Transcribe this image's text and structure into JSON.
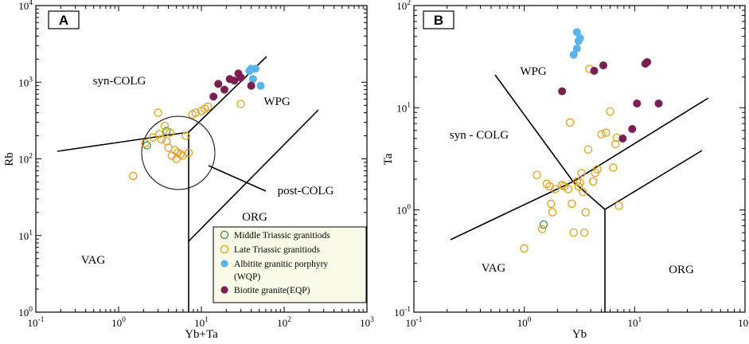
{
  "figure": {
    "colors": {
      "middle": "#3f8f5a",
      "late": "#e0a11a",
      "albitite": "#5ab4ea",
      "biotite": "#7d1e52",
      "legend_bg": "#fbf9e8"
    }
  },
  "chart_data": [
    {
      "panel": "A",
      "type": "scatter",
      "title": "",
      "xlabel": "Yb+Ta",
      "ylabel": "Rb",
      "xscale": "log",
      "yscale": "log",
      "xlim": [
        0.1,
        1000
      ],
      "ylim": [
        1,
        10000
      ],
      "x_tick_labels": [
        "10^-1",
        "10^0",
        "10^1",
        "10^2",
        "10^3"
      ],
      "y_tick_labels": [
        "10^0",
        "10^1",
        "10^2",
        "10^3",
        "10^4"
      ],
      "field_labels": [
        "syn-COLG",
        "WPG",
        "post-COLG",
        "ORG",
        "VAG"
      ],
      "legend": [
        {
          "key": "middle",
          "label": "Middle Triassic granitiods",
          "marker": "open-circle"
        },
        {
          "key": "late",
          "label": "Late Triassic granitiods",
          "marker": "open-circle"
        },
        {
          "key": "albitite",
          "label": "Albitite granitic porphyry",
          "label2": "(WQP)",
          "marker": "filled-circle"
        },
        {
          "key": "biotite",
          "label": "Biotite granite(EQP)",
          "marker": "filled-circle"
        }
      ],
      "series": [
        {
          "key": "middle",
          "points": [
            [
              2.2,
              150
            ],
            [
              3.8,
              230
            ]
          ]
        },
        {
          "key": "late",
          "points": [
            [
              1.5,
              60
            ],
            [
              2.1,
              160
            ],
            [
              2.6,
              190
            ],
            [
              3.0,
              400
            ],
            [
              3.1,
              210
            ],
            [
              3.3,
              180
            ],
            [
              3.6,
              270
            ],
            [
              3.8,
              170
            ],
            [
              4.0,
              140
            ],
            [
              4.2,
              220
            ],
            [
              4.4,
              110
            ],
            [
              4.8,
              130
            ],
            [
              5.0,
              100
            ],
            [
              5.2,
              120
            ],
            [
              5.6,
              115
            ],
            [
              5.9,
              110
            ],
            [
              6.5,
              200
            ],
            [
              7.0,
              120
            ],
            [
              7.8,
              380
            ],
            [
              8.5,
              400
            ],
            [
              10.0,
              420
            ],
            [
              11.0,
              450
            ],
            [
              12.0,
              480
            ],
            [
              30.0,
              520
            ]
          ]
        },
        {
          "key": "albitite",
          "points": [
            [
              38,
              1400
            ],
            [
              40,
              1500
            ],
            [
              45,
              1500
            ],
            [
              42,
              1100
            ],
            [
              52,
              900
            ]
          ]
        },
        {
          "key": "biotite",
          "points": [
            [
              14,
              650
            ],
            [
              16,
              950
            ],
            [
              19,
              800
            ],
            [
              22,
              1100
            ],
            [
              25,
              1050
            ],
            [
              28,
              1300
            ],
            [
              30,
              1150
            ],
            [
              40,
              900
            ]
          ]
        }
      ]
    },
    {
      "panel": "B",
      "type": "scatter",
      "title": "",
      "xlabel": "Yb",
      "ylabel": "Ta",
      "xscale": "log",
      "yscale": "log",
      "xlim": [
        0.1,
        100
      ],
      "ylim": [
        0.1,
        100
      ],
      "x_tick_labels": [
        "10^-1",
        "10^0",
        "10^1",
        "10^2"
      ],
      "y_tick_labels": [
        "10^-1",
        "10^0",
        "10^1",
        "10^2"
      ],
      "field_labels": [
        "WPG",
        "syn - COLG",
        "VAG",
        "ORG"
      ],
      "series": [
        {
          "key": "middle",
          "points": [
            [
              1.5,
              0.72
            ],
            [
              2.2,
              1.75
            ]
          ]
        },
        {
          "key": "late",
          "points": [
            [
              1.0,
              0.42
            ],
            [
              1.3,
              2.2
            ],
            [
              1.45,
              0.65
            ],
            [
              1.6,
              1.8
            ],
            [
              1.7,
              1.7
            ],
            [
              1.75,
              1.15
            ],
            [
              1.8,
              0.95
            ],
            [
              1.9,
              1.6
            ],
            [
              2.2,
              1.75
            ],
            [
              2.3,
              1.7
            ],
            [
              2.5,
              1.6
            ],
            [
              2.6,
              7.2
            ],
            [
              2.7,
              1.15
            ],
            [
              2.8,
              0.6
            ],
            [
              3.0,
              1.9
            ],
            [
              3.1,
              1.7
            ],
            [
              3.2,
              1.85
            ],
            [
              3.3,
              2.3
            ],
            [
              3.4,
              1.5
            ],
            [
              3.5,
              0.6
            ],
            [
              3.6,
              0.95
            ],
            [
              3.8,
              3.9
            ],
            [
              3.9,
              24
            ],
            [
              4.2,
              1.9
            ],
            [
              4.4,
              2.3
            ],
            [
              4.6,
              2.5
            ],
            [
              5.0,
              5.5
            ],
            [
              5.5,
              5.7
            ],
            [
              6.0,
              9.2
            ],
            [
              6.4,
              2.6
            ],
            [
              6.7,
              4.4
            ],
            [
              6.9,
              5.1
            ],
            [
              7.2,
              1.1
            ]
          ]
        },
        {
          "key": "albitite",
          "points": [
            [
              2.8,
              33
            ],
            [
              3.0,
              38
            ],
            [
              3.1,
              45
            ],
            [
              3.2,
              48
            ],
            [
              3.0,
              55
            ]
          ]
        },
        {
          "key": "biotite",
          "points": [
            [
              2.2,
              14.5
            ],
            [
              4.3,
              23
            ],
            [
              5.2,
              26
            ],
            [
              7.8,
              5.0
            ],
            [
              9.5,
              6.2
            ],
            [
              10.5,
              11
            ],
            [
              12.5,
              27
            ],
            [
              13.0,
              28
            ],
            [
              16.5,
              11
            ]
          ]
        }
      ]
    }
  ]
}
